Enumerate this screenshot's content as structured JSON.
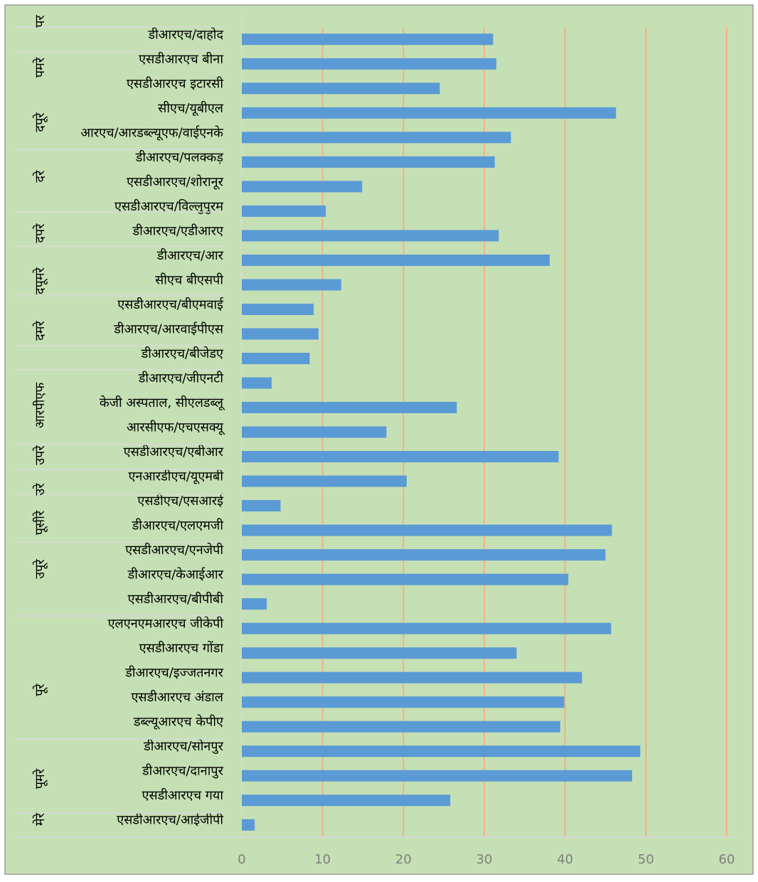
{
  "chart_data": {
    "type": "bar",
    "orientation": "horizontal",
    "group_labels": [
      "पर",
      "पमरे",
      "दपूरे",
      "दरे",
      "दपरे",
      "दपूमरे",
      "दमरे",
      "आरपीएफ",
      "उपरे",
      "उरे",
      "पूसीरे",
      "उपूरे",
      "पूरे",
      "पूमरे",
      "मेरे"
    ],
    "categories": [
      "डीआरएच/दाहोद",
      "एसडीआरएच बीना",
      "एसडीआरएच इटारसी",
      "सीएच/यूबीएल",
      "आरएच/आरडब्ल्यूएफ/वाईएनके",
      "डीआरएच/पलक्कड़",
      "एसडीआरएच/शोरानूर",
      "एसडीआरएच/विल्लुपुरम",
      "डीआरएच/एडीआरए",
      "डीआरएच/आर",
      "सीएच बीएसपी",
      "एसडीआरएच/बीएमवाई",
      "डीआरएच/आरवाईपीएस",
      "डीआरएच/बीजेडए",
      "डीआरएच/जीएनटी",
      "केजी अस्पताल, सीएलडब्लू",
      "आरसीएफ/एचएसक्यू",
      "एसडीआरएच/एबीआर",
      "एनआरडीएच/यूएमबी",
      "एसडीएच/एसआरई",
      "डीआरएच/एलएमजी",
      "एसडीआरएच/एनजेपी",
      "डीआरएच/केआईआर",
      "एसडीआरएच/बीपीबी",
      "एलएनएमआरएच जीकेपी",
      "एसडीआरएच गोंडा",
      "डीआरएच/इज्जतनगर",
      "एसडीआरएच अंडाल",
      "डब्ल्यूआरएच केपीए",
      "डीआरएच/सोनपुर",
      "डीआरएच/दानापुर",
      "एसडीआरएच गया",
      "एसडीआरएच/आईजीपी"
    ],
    "values": [
      31.1,
      31.5,
      24.5,
      46.3,
      33.3,
      31.3,
      14.9,
      10.4,
      31.8,
      38.1,
      12.3,
      8.9,
      9.5,
      8.4,
      3.7,
      26.6,
      17.9,
      39.2,
      20.4,
      4.8,
      45.8,
      45.0,
      40.4,
      3.1,
      45.7,
      34.0,
      42.1,
      39.9,
      39.4,
      49.3,
      48.3,
      25.8,
      1.6
    ],
    "color": "#5b9bd5",
    "grid_color": "#f4b183",
    "xlim": [
      0,
      60
    ],
    "xticks": [
      0,
      10,
      20,
      30,
      40,
      50,
      60
    ],
    "grid": true
  }
}
